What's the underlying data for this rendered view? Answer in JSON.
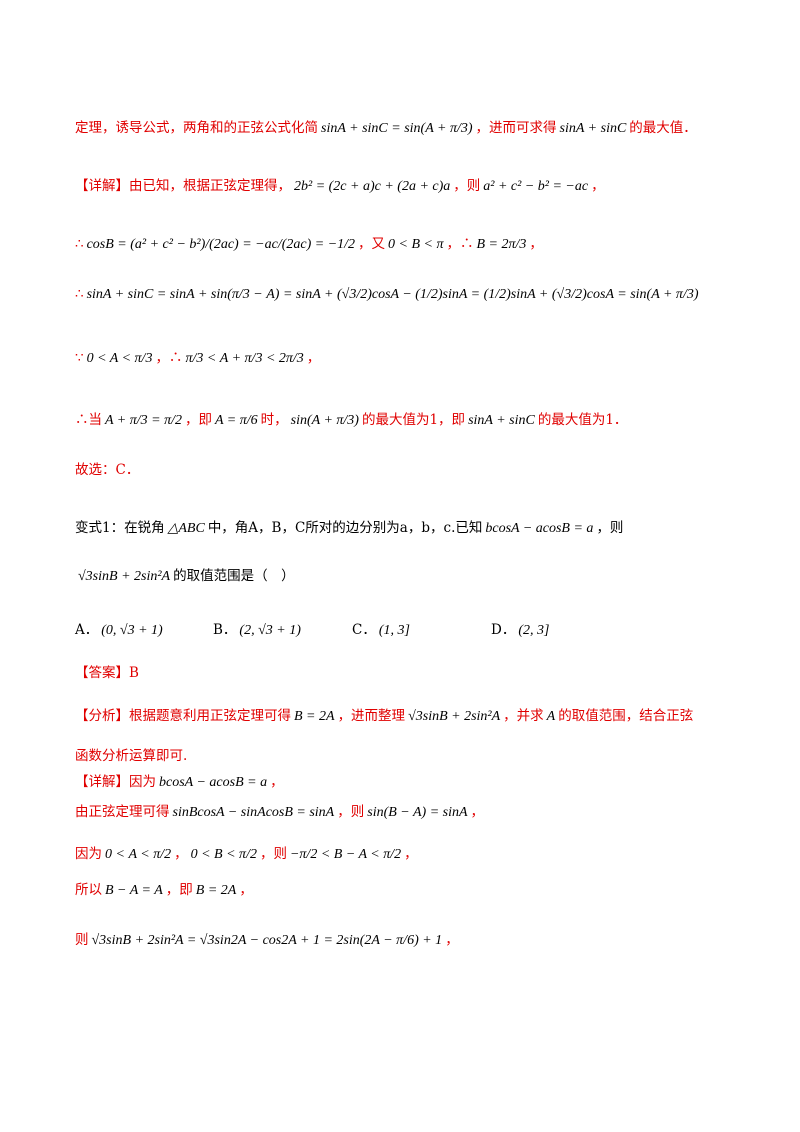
{
  "solution1": [
    [
      "定理，诱导公式，两角和的正弦公式化简",
      "sinA + sinC = sin(A + π/3)",
      "，进而可求得",
      "sinA + sinC",
      "的最大值．"
    ],
    [
      "【详解】由已知，根据正弦定理得，",
      "2b² = (2c + a)c + (2a + c)a",
      "，则",
      "a² + c² − b² = −ac",
      "，"
    ],
    [
      "∴",
      "cosB = (a² + c² − b²)/(2ac) = −ac/(2ac) = −1/2",
      "，又",
      "0 < B < π",
      "，∴",
      "B = 2π/3",
      "，"
    ],
    [
      "∴",
      "sinA + sinC = sinA + sin(π/3 − A) = sinA + (√3/2)cosA − (1/2)sinA = (1/2)sinA + (√3/2)cosA = sin(A + π/3)"
    ],
    [
      "∵",
      "0 < A < π/3",
      "，∴",
      "π/3 < A + π/3 < 2π/3",
      "，"
    ],
    [
      "∴当",
      "A + π/3 = π/2",
      "，即",
      "A = π/6",
      "时，",
      "sin(A + π/3)",
      "的最大值为1，即",
      "sinA + sinC",
      "的最大值为1．"
    ],
    [
      "故选：C．"
    ]
  ],
  "problem": [
    [
      "变式1：在锐角",
      "△ABC",
      "中，角A，B，C所对的边分别为a，b，c.已知",
      "bcosA − acosB = a",
      "，则"
    ],
    [
      "√3sinB + 2sin²A",
      "的取值范围是（　）"
    ]
  ],
  "options": [
    [
      "A．",
      "(0, √3 + 1)"
    ],
    [
      "B．",
      "(2, √3 + 1)"
    ],
    [
      "C．",
      "(1, 3]"
    ],
    [
      "D．",
      "(2, 3]"
    ]
  ],
  "answer": [
    [
      "【答案】B"
    ]
  ],
  "solution2": [
    [
      "【分析】根据题意利用正弦定理可得",
      "B = 2A",
      "，进而整理",
      "√3sinB + 2sin²A",
      "，并求",
      "A",
      "的取值范围，结合正弦"
    ],
    [
      "函数分析运算即可."
    ],
    [
      "【详解】因为",
      "bcosA − acosB = a",
      "，"
    ],
    [
      "由正弦定理可得",
      "sinBcosA − sinAcosB = sinA",
      "，则",
      "sin(B − A) = sinA",
      "，"
    ],
    [
      "因为",
      "0 < A < π/2",
      "，",
      "0 < B < π/2",
      "，则",
      "−π/2 < B − A < π/2",
      "，"
    ],
    [
      "所以",
      "B − A = A",
      "，即",
      "B = 2A",
      "，"
    ],
    [
      "则",
      "√3sinB + 2sin²A = √3sin2A − cos2A + 1 = 2sin(2A − π/6) + 1",
      "，"
    ]
  ]
}
